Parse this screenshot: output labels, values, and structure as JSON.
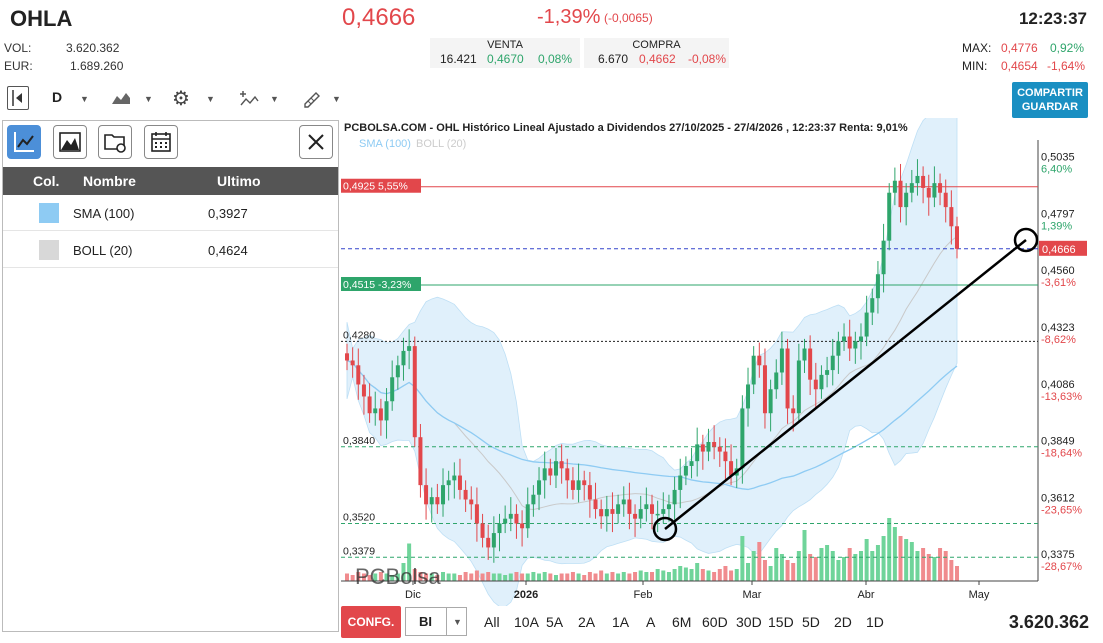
{
  "header": {
    "ticker": "OHLA",
    "price": "0,4666",
    "change_pct": "-1,39%",
    "change_abs": "(-0,0065)",
    "time": "12:23:37"
  },
  "stats": {
    "vol_label": "VOL:",
    "vol_value": "3.620.362",
    "eur_label": "EUR:",
    "eur_value": "1.689.260"
  },
  "book": {
    "sell_label": "VENTA",
    "sell_qty": "16.421",
    "sell_price": "0,4670",
    "sell_pct": "0,08%",
    "buy_label": "COMPRA",
    "buy_qty": "6.670",
    "buy_price": "0,4662",
    "buy_pct": "-0,08%"
  },
  "range": {
    "max_label": "MAX:",
    "max_value": "0,4776",
    "max_pct": "0,92%",
    "min_label": "MIN:",
    "min_value": "0,4654",
    "min_pct": "-1,64%"
  },
  "toolbar": {
    "interval": "D",
    "share_label_1": "COMPARTIR",
    "share_label_2": "GUARDAR"
  },
  "panel": {
    "col_header": "Col.",
    "name_header": "Nombre",
    "last_header": "Ultimo",
    "rows": [
      {
        "name": "SMA (100)",
        "value": "0,3927",
        "color": "#8ecbf3"
      },
      {
        "name": "BOLL (20)",
        "value": "0,4624",
        "color": "#d8d8d8"
      }
    ]
  },
  "chart_title": "PCBOLSA.COM - OHL Histórico Lineal Ajustado a Dividendos 27/10/2025 - 27/4/2026 , 12:23:37 Renta: 9,01%",
  "legend": {
    "sma": "SMA (100)",
    "boll": "BOLL (20)"
  },
  "watermark": "PCBolsa",
  "chart_data": {
    "type": "candlestick",
    "y_ticks": [
      {
        "value": 0.5035,
        "label": "0,5035",
        "pct": "6,40%"
      },
      {
        "value": 0.4797,
        "label": "0,4797",
        "pct": "1,39%"
      },
      {
        "value": 0.456,
        "label": "0,4560",
        "pct": "-3,61%"
      },
      {
        "value": 0.4323,
        "label": "0,4323",
        "pct": "-8,62%"
      },
      {
        "value": 0.4086,
        "label": "0,4086",
        "pct": "-13,63%"
      },
      {
        "value": 0.3849,
        "label": "0,3849",
        "pct": "-18,64%"
      },
      {
        "value": 0.3612,
        "label": "0,3612",
        "pct": "-23,65%"
      },
      {
        "value": 0.3375,
        "label": "0,3375",
        "pct": "-28,67%"
      }
    ],
    "x_ticks": [
      "Dic",
      "2026",
      "Feb",
      "Mar",
      "Abr",
      "May"
    ],
    "ylim": [
      0.328,
      0.512
    ],
    "last_price": {
      "value": 0.4666,
      "label": "0,4666"
    },
    "level_lines": [
      {
        "value": 0.4925,
        "label": "0,4925",
        "pct": "5,55%",
        "color": "#e2474b"
      },
      {
        "value": 0.4515,
        "label": "0,4515",
        "pct": "-3,23%",
        "color": "#2ea56b"
      }
    ],
    "left_labels": [
      {
        "value": 0.428,
        "label": "0,4280"
      },
      {
        "value": 0.384,
        "label": "0,3840"
      },
      {
        "value": 0.352,
        "label": "0,3520"
      },
      {
        "value": 0.3379,
        "label": "0,3379"
      }
    ],
    "closes": [
      0.42,
      0.418,
      0.41,
      0.405,
      0.398,
      0.4,
      0.395,
      0.403,
      0.413,
      0.418,
      0.424,
      0.426,
      0.388,
      0.368,
      0.36,
      0.363,
      0.36,
      0.368,
      0.37,
      0.372,
      0.366,
      0.362,
      0.36,
      0.352,
      0.346,
      0.342,
      0.348,
      0.352,
      0.354,
      0.356,
      0.352,
      0.35,
      0.36,
      0.364,
      0.37,
      0.375,
      0.372,
      0.378,
      0.375,
      0.37,
      0.366,
      0.37,
      0.368,
      0.362,
      0.358,
      0.355,
      0.358,
      0.356,
      0.36,
      0.362,
      0.356,
      0.354,
      0.358,
      0.36,
      0.356,
      0.356,
      0.358,
      0.36,
      0.366,
      0.372,
      0.376,
      0.378,
      0.385,
      0.382,
      0.386,
      0.384,
      0.382,
      0.378,
      0.372,
      0.375,
      0.4,
      0.41,
      0.422,
      0.418,
      0.398,
      0.408,
      0.415,
      0.425,
      0.4,
      0.398,
      0.42,
      0.425,
      0.412,
      0.408,
      0.414,
      0.416,
      0.422,
      0.428,
      0.43,
      0.425,
      0.428,
      0.43,
      0.44,
      0.446,
      0.456,
      0.47,
      0.49,
      0.495,
      0.484,
      0.49,
      0.494,
      0.497,
      0.492,
      0.488,
      0.494,
      0.49,
      0.484,
      0.476,
      0.4666
    ],
    "volumes": [
      0.05,
      0.04,
      0.06,
      0.05,
      0.04,
      0.05,
      0.06,
      0.05,
      0.04,
      0.05,
      0.12,
      0.25,
      0.08,
      0.06,
      0.05,
      0.05,
      0.04,
      0.06,
      0.05,
      0.05,
      0.04,
      0.06,
      0.05,
      0.07,
      0.05,
      0.06,
      0.05,
      0.05,
      0.04,
      0.05,
      0.06,
      0.05,
      0.05,
      0.06,
      0.05,
      0.06,
      0.05,
      0.04,
      0.05,
      0.05,
      0.06,
      0.05,
      0.04,
      0.06,
      0.05,
      0.07,
      0.05,
      0.06,
      0.05,
      0.06,
      0.05,
      0.06,
      0.07,
      0.06,
      0.06,
      0.08,
      0.07,
      0.06,
      0.08,
      0.1,
      0.09,
      0.08,
      0.12,
      0.08,
      0.07,
      0.06,
      0.08,
      0.1,
      0.07,
      0.08,
      0.3,
      0.12,
      0.2,
      0.26,
      0.14,
      0.1,
      0.22,
      0.18,
      0.14,
      0.12,
      0.2,
      0.34,
      0.18,
      0.16,
      0.22,
      0.24,
      0.2,
      0.14,
      0.16,
      0.22,
      0.18,
      0.2,
      0.28,
      0.2,
      0.24,
      0.3,
      0.42,
      0.36,
      0.3,
      0.28,
      0.26,
      0.2,
      0.22,
      0.18,
      0.16,
      0.22,
      0.2,
      0.14,
      0.1
    ]
  },
  "bottom": {
    "config_label": "CONFG.",
    "select_value": "BI",
    "periods": [
      "All",
      "10A",
      "5A",
      "2A",
      "1A",
      "A",
      "6M",
      "60D",
      "30D",
      "15D",
      "5D",
      "2D",
      "1D"
    ],
    "total_volume": "3.620.362"
  }
}
